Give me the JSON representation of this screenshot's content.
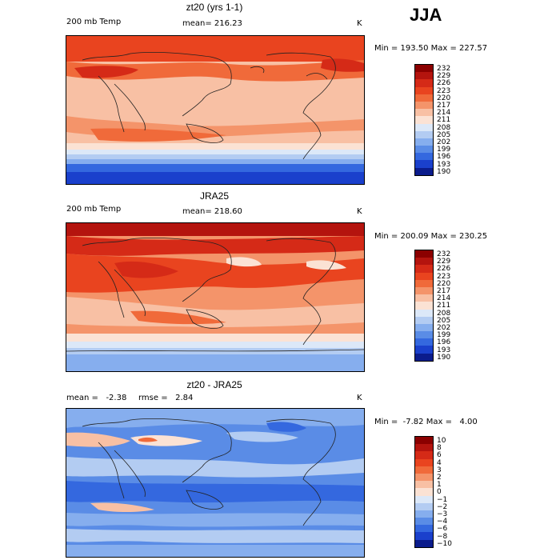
{
  "season": "JJA",
  "panels": [
    {
      "title": "zt20 (yrs 1-1)",
      "left_label": "200 mb Temp",
      "stat_label": "mean= 216.23",
      "unit": "K",
      "min_max": "Min = 193.50 Max = 227.57",
      "colorbar": {
        "labels": [
          "232",
          "229",
          "226",
          "223",
          "220",
          "217",
          "214",
          "211",
          "208",
          "205",
          "202",
          "199",
          "196",
          "193",
          "190"
        ],
        "colors": [
          "#8b0000",
          "#b4140e",
          "#d52a17",
          "#e9441f",
          "#f06a3a",
          "#f4946a",
          "#f8c0a4",
          "#fbe2d4",
          "#dce8f8",
          "#b3ccf2",
          "#86aeee",
          "#5a8ce6",
          "#3468df",
          "#1a40cc",
          "#0b1c8c"
        ]
      }
    },
    {
      "title": "JRA25",
      "left_label": "200 mb Temp",
      "stat_label": "mean= 218.60",
      "unit": "K",
      "min_max": "Min = 200.09 Max = 230.25",
      "colorbar": {
        "labels": [
          "232",
          "229",
          "226",
          "223",
          "220",
          "217",
          "214",
          "211",
          "208",
          "205",
          "202",
          "199",
          "196",
          "193",
          "190"
        ],
        "colors": [
          "#8b0000",
          "#b4140e",
          "#d52a17",
          "#e9441f",
          "#f06a3a",
          "#f4946a",
          "#f8c0a4",
          "#fbe2d4",
          "#dce8f8",
          "#b3ccf2",
          "#86aeee",
          "#5a8ce6",
          "#3468df",
          "#1a40cc",
          "#0b1c8c"
        ]
      }
    },
    {
      "title": "zt20 - JRA25",
      "left_label": "mean =   -2.38",
      "stat_label": "rmse =   2.84",
      "unit": "K",
      "min_max": "Min =  -7.82 Max =   4.00",
      "colorbar": {
        "labels": [
          "10",
          "8",
          "6",
          "4",
          "3",
          "2",
          "1",
          "0",
          "−1",
          "−2",
          "−3",
          "−4",
          "−6",
          "−8",
          "−10"
        ],
        "colors": [
          "#8b0000",
          "#b4140e",
          "#d52a17",
          "#e9441f",
          "#f06a3a",
          "#f4946a",
          "#f8c0a4",
          "#fbe2d4",
          "#dce8f8",
          "#b3ccf2",
          "#86aeee",
          "#5a8ce6",
          "#3468df",
          "#1a40cc",
          "#0b1c8c"
        ]
      }
    }
  ]
}
